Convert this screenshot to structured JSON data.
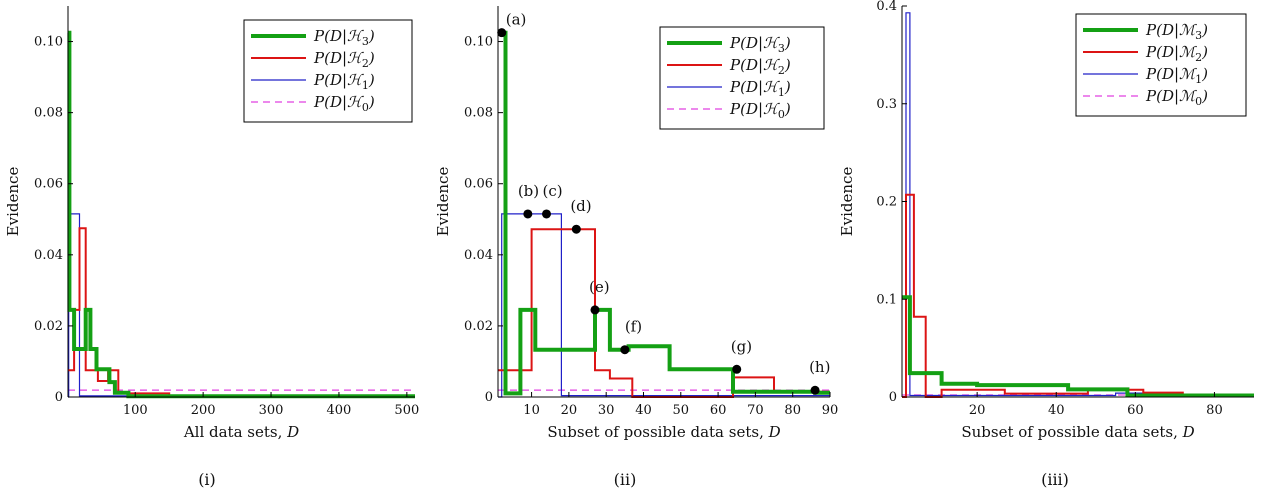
{
  "figure": {
    "colors": {
      "H3": "#14a014",
      "H2": "#dc1414",
      "H1": "#2020c8",
      "H0": "#e040e0"
    },
    "panels": [
      {
        "label": "(i)"
      },
      {
        "label": "(ii)"
      },
      {
        "label": "(iii)"
      }
    ]
  },
  "chart_data": [
    {
      "type": "line",
      "title": "",
      "panel_label": "(i)",
      "xlabel": "All data sets, D",
      "ylabel": "Evidence",
      "xlim": [
        1,
        512
      ],
      "ylim": [
        0,
        0.11
      ],
      "xticks": [
        100,
        200,
        300,
        400,
        500
      ],
      "yticks": [
        0,
        0.02,
        0.04,
        0.06,
        0.08,
        0.1
      ],
      "ytick_labels": [
        "0",
        "0.02",
        "0.04",
        "0.06",
        "0.08",
        "0.10"
      ],
      "legend_position": "top-right",
      "series": [
        {
          "name": "P(D|H3)",
          "key": "H3",
          "style": "solid-thick",
          "steps": [
            [
              1,
              3,
              0.1025
            ],
            [
              3,
              10,
              0.0245
            ],
            [
              10,
              27,
              0.0135
            ],
            [
              27,
              34,
              0.0245
            ],
            [
              34,
              43,
              0.0135
            ],
            [
              43,
              62,
              0.0078
            ],
            [
              62,
              70,
              0.0042
            ],
            [
              70,
              90,
              0.0012
            ],
            [
              90,
              512,
              0.0002
            ]
          ]
        },
        {
          "name": "P(D|H2)",
          "key": "H2",
          "style": "solid",
          "steps": [
            [
              1,
              10,
              0.0075
            ],
            [
              10,
              18,
              0.0245
            ],
            [
              18,
              27,
              0.0475
            ],
            [
              27,
              45,
              0.0075
            ],
            [
              45,
              60,
              0.0045
            ],
            [
              60,
              75,
              0.0075
            ],
            [
              75,
              150,
              0.001
            ],
            [
              150,
              512,
              0.0003
            ]
          ]
        },
        {
          "name": "P(D|H1)",
          "key": "H1",
          "style": "solid-thin",
          "steps": [
            [
              1,
              2,
              0.0
            ],
            [
              2,
              18,
              0.0515
            ],
            [
              18,
              512,
              0.0003
            ]
          ]
        },
        {
          "name": "P(D|H0)",
          "key": "H0",
          "style": "dashed",
          "steps": [
            [
              1,
              512,
              0.00195
            ]
          ]
        }
      ]
    },
    {
      "type": "line",
      "title": "",
      "panel_label": "(ii)",
      "xlabel": "Subset of possible data sets, D",
      "ylabel": "Evidence",
      "xlim": [
        1,
        90
      ],
      "ylim": [
        0,
        0.11
      ],
      "xticks": [
        10,
        20,
        30,
        40,
        50,
        60,
        70,
        80,
        90
      ],
      "yticks": [
        0,
        0.02,
        0.04,
        0.06,
        0.08,
        0.1
      ],
      "ytick_labels": [
        "0",
        "0.02",
        "0.04",
        "0.06",
        "0.08",
        "0.10"
      ],
      "legend_position": "top-right",
      "series": [
        {
          "name": "P(D|H3)",
          "key": "H3",
          "style": "solid-thick",
          "steps": [
            [
              1,
              3,
              0.1025
            ],
            [
              3,
              7,
              0.001
            ],
            [
              7,
              11,
              0.0245
            ],
            [
              11,
              27,
              0.0133
            ],
            [
              27,
              31,
              0.0245
            ],
            [
              31,
              36,
              0.0133
            ],
            [
              36,
              47,
              0.0143
            ],
            [
              47,
              64,
              0.0078
            ],
            [
              64,
              86,
              0.0015
            ],
            [
              86,
              90,
              0.0012
            ]
          ]
        },
        {
          "name": "P(D|H2)",
          "key": "H2",
          "style": "solid",
          "steps": [
            [
              1,
              10,
              0.0075
            ],
            [
              10,
              27,
              0.0472
            ],
            [
              27,
              31,
              0.0075
            ],
            [
              31,
              37,
              0.0052
            ],
            [
              37,
              64,
              0.0
            ],
            [
              64,
              75,
              0.0055
            ],
            [
              75,
              90,
              0.0015
            ]
          ]
        },
        {
          "name": "P(D|H1)",
          "key": "H1",
          "style": "solid-thin",
          "steps": [
            [
              1,
              2,
              0.0
            ],
            [
              2,
              18,
              0.0515
            ],
            [
              18,
              90,
              0.0004
            ]
          ]
        },
        {
          "name": "P(D|H0)",
          "key": "H0",
          "style": "dashed",
          "steps": [
            [
              1,
              90,
              0.00195
            ]
          ]
        }
      ],
      "annotations": [
        {
          "label": "(a)",
          "x": 2,
          "y": 0.1025
        },
        {
          "label": "(b)",
          "x": 9,
          "y": 0.0515
        },
        {
          "label": "(c)",
          "x": 14,
          "y": 0.0515
        },
        {
          "label": "(d)",
          "x": 22,
          "y": 0.0472
        },
        {
          "label": "(e)",
          "x": 27,
          "y": 0.0245
        },
        {
          "label": "(f)",
          "x": 35,
          "y": 0.0133
        },
        {
          "label": "(g)",
          "x": 65,
          "y": 0.0078
        },
        {
          "label": "(h)",
          "x": 86,
          "y": 0.0019
        }
      ]
    },
    {
      "type": "line",
      "title": "",
      "panel_label": "(iii)",
      "xlabel": "Subset of possible data sets, D",
      "ylabel": "Evidence",
      "xlim": [
        1,
        90
      ],
      "ylim": [
        0,
        0.4
      ],
      "xticks": [
        20,
        40,
        60,
        80
      ],
      "yticks": [
        0,
        0.1,
        0.2,
        0.3,
        0.4
      ],
      "ytick_labels": [
        "0",
        "0.1",
        "0.2",
        "0.3",
        "0.4"
      ],
      "legend_position": "top-right",
      "series": [
        {
          "name": "P(D|M3)",
          "key": "H3",
          "style": "solid-thick",
          "steps": [
            [
              1,
              3,
              0.102
            ],
            [
              3,
              11,
              0.0245
            ],
            [
              11,
              20,
              0.0135
            ],
            [
              20,
              43,
              0.0122
            ],
            [
              43,
              58,
              0.0078
            ],
            [
              58,
              90,
              0.0015
            ]
          ]
        },
        {
          "name": "P(D|M2)",
          "key": "H2",
          "style": "solid",
          "steps": [
            [
              1,
              2,
              0.0
            ],
            [
              2,
              4,
              0.207
            ],
            [
              4,
              7,
              0.082
            ],
            [
              7,
              11,
              0.0
            ],
            [
              11,
              27,
              0.0075
            ],
            [
              27,
              48,
              0.0035
            ],
            [
              48,
              62,
              0.0075
            ],
            [
              62,
              72,
              0.0045
            ],
            [
              72,
              90,
              0.0015
            ]
          ]
        },
        {
          "name": "P(D|M1)",
          "key": "H1",
          "style": "solid-thin",
          "steps": [
            [
              1,
              2,
              0.0
            ],
            [
              2,
              3,
              0.393
            ],
            [
              3,
              55,
              0.0015
            ],
            [
              55,
              72,
              0.004
            ],
            [
              72,
              90,
              0.0015
            ]
          ]
        },
        {
          "name": "P(D|M0)",
          "key": "H0",
          "style": "dashed",
          "steps": [
            [
              1,
              90,
              0.002
            ]
          ]
        }
      ]
    }
  ]
}
